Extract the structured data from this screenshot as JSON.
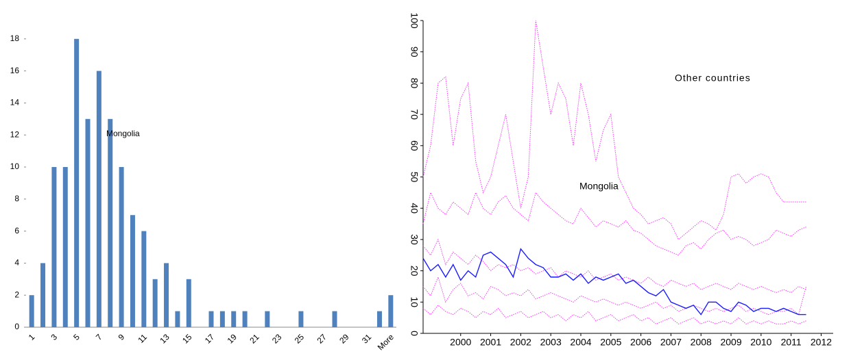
{
  "chart_data": [
    {
      "type": "bar",
      "color": "#4f81bd",
      "annotation": "Mongolia",
      "categories": [
        "1",
        null,
        "3",
        null,
        "5",
        null,
        "7",
        null,
        "9",
        null,
        "11",
        null,
        "13",
        null,
        "15",
        null,
        "17",
        null,
        "19",
        null,
        "21",
        null,
        "23",
        null,
        "25",
        null,
        "27",
        null,
        "29",
        null,
        "31",
        null,
        "More"
      ],
      "values": [
        2,
        4,
        10,
        10,
        18,
        13,
        16,
        13,
        10,
        7,
        6,
        3,
        4,
        1,
        3,
        0,
        1,
        1,
        1,
        1,
        0,
        1,
        0,
        0,
        1,
        0,
        0,
        1,
        0,
        0,
        0,
        1,
        2
      ],
      "ylim": [
        0,
        20
      ],
      "yticks": [
        0,
        2,
        4,
        6,
        8,
        10,
        12,
        14,
        16,
        18
      ]
    },
    {
      "type": "line",
      "annotations": [
        "Other countries",
        "Mongolia"
      ],
      "x": [
        1998.75,
        1999,
        1999.25,
        1999.5,
        1999.75,
        2000,
        2000.25,
        2000.5,
        2000.75,
        2001,
        2001.25,
        2001.5,
        2001.75,
        2002,
        2002.25,
        2002.5,
        2002.75,
        2003,
        2003.25,
        2003.5,
        2003.75,
        2004,
        2004.25,
        2004.5,
        2004.75,
        2005,
        2005.25,
        2005.5,
        2005.75,
        2006,
        2006.25,
        2006.5,
        2006.75,
        2007,
        2007.25,
        2007.5,
        2007.75,
        2008,
        2008.25,
        2008.5,
        2008.75,
        2009,
        2009.25,
        2009.5,
        2009.75,
        2010,
        2010.25,
        2010.5,
        2010.75,
        2011,
        2011.25,
        2011.5
      ],
      "series": [
        {
          "color": "#ff33ff",
          "values": [
            50,
            60,
            80,
            82,
            60,
            75,
            80,
            55,
            45,
            50,
            60,
            70,
            55,
            40,
            50,
            100,
            85,
            70,
            80,
            75,
            60,
            80,
            70,
            55,
            65,
            70,
            50,
            45,
            40,
            38,
            35,
            36,
            37,
            35,
            30,
            32,
            34,
            36,
            35,
            33,
            38,
            50,
            51,
            48,
            50,
            51,
            50,
            45,
            42,
            42,
            42,
            42
          ]
        },
        {
          "color": "#ff33ff",
          "values": [
            35,
            45,
            40,
            38,
            42,
            40,
            38,
            45,
            40,
            38,
            42,
            44,
            40,
            38,
            36,
            45,
            42,
            40,
            38,
            36,
            35,
            40,
            37,
            34,
            36,
            35,
            34,
            36,
            33,
            32,
            30,
            28,
            27,
            26,
            25,
            28,
            29,
            27,
            30,
            32,
            33,
            30,
            31,
            30,
            28,
            29,
            30,
            33,
            32,
            31,
            33,
            34
          ]
        },
        {
          "color": "#ff33ff",
          "values": [
            15,
            12,
            18,
            10,
            14,
            16,
            12,
            13,
            11,
            15,
            14,
            12,
            13,
            12,
            14,
            11,
            12,
            13,
            12,
            11,
            10,
            12,
            11,
            10,
            11,
            10,
            9,
            10,
            9,
            8,
            9,
            10,
            8,
            9,
            7,
            8,
            9,
            8,
            7,
            8,
            7,
            8,
            9,
            7,
            8,
            7,
            6,
            7,
            7,
            8,
            6,
            15
          ]
        },
        {
          "color": "#ff33ff",
          "values": [
            8,
            6,
            9,
            7,
            6,
            8,
            7,
            5,
            7,
            6,
            8,
            5,
            6,
            7,
            5,
            6,
            7,
            5,
            6,
            4,
            6,
            5,
            7,
            4,
            5,
            6,
            4,
            5,
            6,
            4,
            5,
            3,
            4,
            5,
            3,
            4,
            5,
            3,
            4,
            3,
            4,
            3,
            5,
            3,
            4,
            3,
            4,
            3,
            3,
            4,
            3,
            4
          ]
        },
        {
          "color": "#ff33ff",
          "values": [
            28,
            25,
            30,
            22,
            26,
            24,
            22,
            25,
            23,
            20,
            22,
            21,
            22,
            20,
            21,
            19,
            20,
            21,
            18,
            20,
            19,
            18,
            20,
            17,
            18,
            19,
            17,
            18,
            17,
            16,
            18,
            16,
            15,
            17,
            16,
            15,
            16,
            14,
            15,
            16,
            15,
            14,
            16,
            15,
            14,
            15,
            14,
            13,
            14,
            13,
            15,
            14
          ]
        },
        {
          "color": "#1a1aff",
          "values": [
            24,
            20,
            22,
            18,
            22,
            17,
            20,
            18,
            25,
            26,
            24,
            22,
            18,
            27,
            24,
            22,
            21,
            18,
            18,
            19,
            17,
            19,
            16,
            18,
            17,
            18,
            19,
            16,
            17,
            15,
            13,
            12,
            14,
            10,
            9,
            8,
            9,
            6,
            10,
            10,
            8,
            7,
            10,
            9,
            7,
            8,
            8,
            7,
            8,
            7,
            6,
            6
          ]
        }
      ],
      "xlim": [
        1998.75,
        2012.4
      ],
      "xticks": [
        2000,
        2001,
        2002,
        2003,
        2004,
        2005,
        2006,
        2007,
        2008,
        2009,
        2010,
        2011,
        2012
      ],
      "ylim": [
        0,
        100
      ],
      "yticks": [
        0,
        10,
        20,
        30,
        40,
        50,
        60,
        70,
        80,
        90,
        100
      ]
    }
  ]
}
